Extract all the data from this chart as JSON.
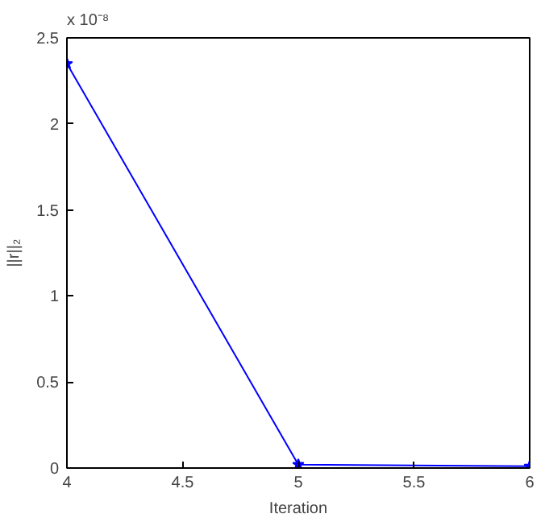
{
  "chart_data": {
    "type": "line",
    "xlabel": "Iteration",
    "ylabel": "||r||₂",
    "annotations": [
      "x 10⁻⁸"
    ],
    "x": [
      4,
      5,
      6
    ],
    "series": [
      {
        "color": "#0000ff",
        "values": [
          2.35,
          0.02,
          0.01
        ]
      }
    ],
    "marker": "star",
    "line_style": "solid",
    "grid": false,
    "xlim": [
      4,
      6
    ],
    "xticks": [
      4,
      4.5,
      5,
      5.5,
      6
    ],
    "ylim": [
      0,
      2.5
    ],
    "yticks": [
      0,
      0.5,
      1,
      1.5,
      2,
      2.5
    ]
  }
}
